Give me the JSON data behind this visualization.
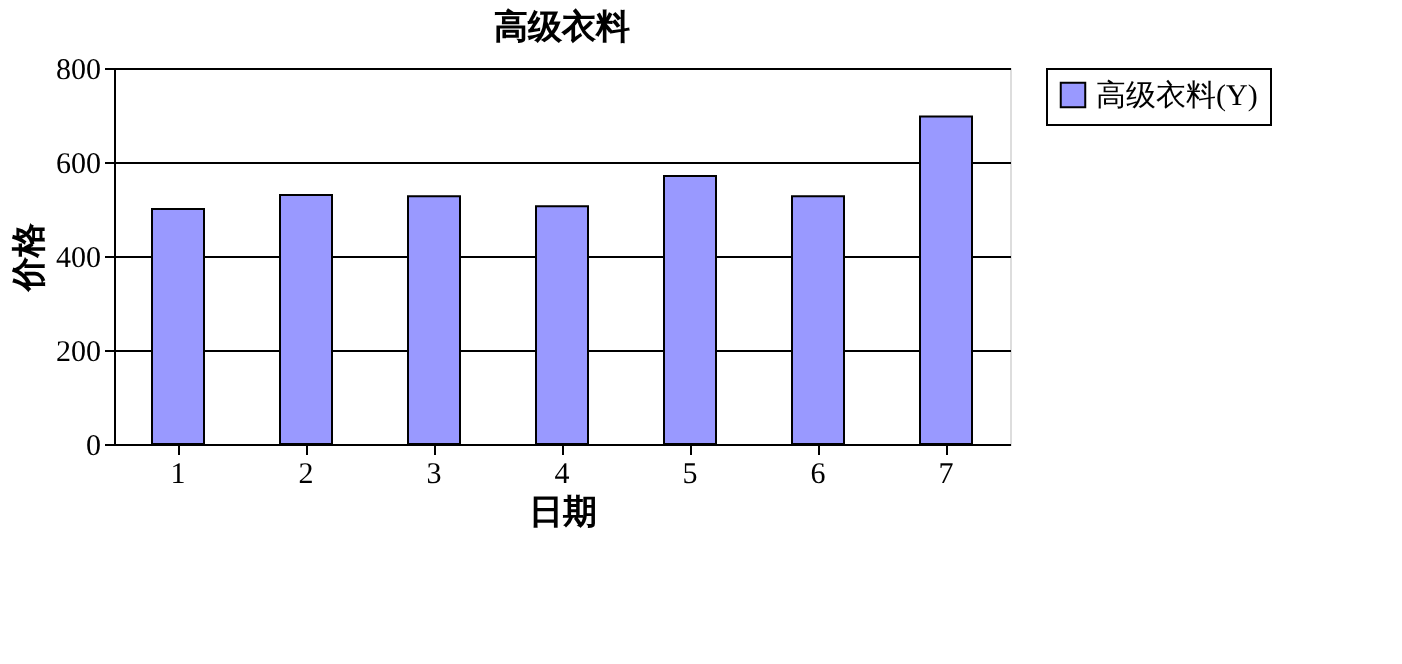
{
  "chart_data": {
    "type": "bar",
    "title": "高级衣料",
    "xlabel": "日期",
    "ylabel": "价格",
    "categories": [
      "1",
      "2",
      "3",
      "4",
      "5",
      "6",
      "7"
    ],
    "series": [
      {
        "name": "高级衣料(Y)",
        "color": "#9999ff",
        "values": [
          500,
          530,
          527,
          506,
          570,
          527,
          697
        ]
      }
    ],
    "ylim": [
      0,
      800
    ],
    "yticks": [
      0,
      200,
      400,
      600,
      800
    ],
    "grid": "y",
    "legend": "right"
  }
}
